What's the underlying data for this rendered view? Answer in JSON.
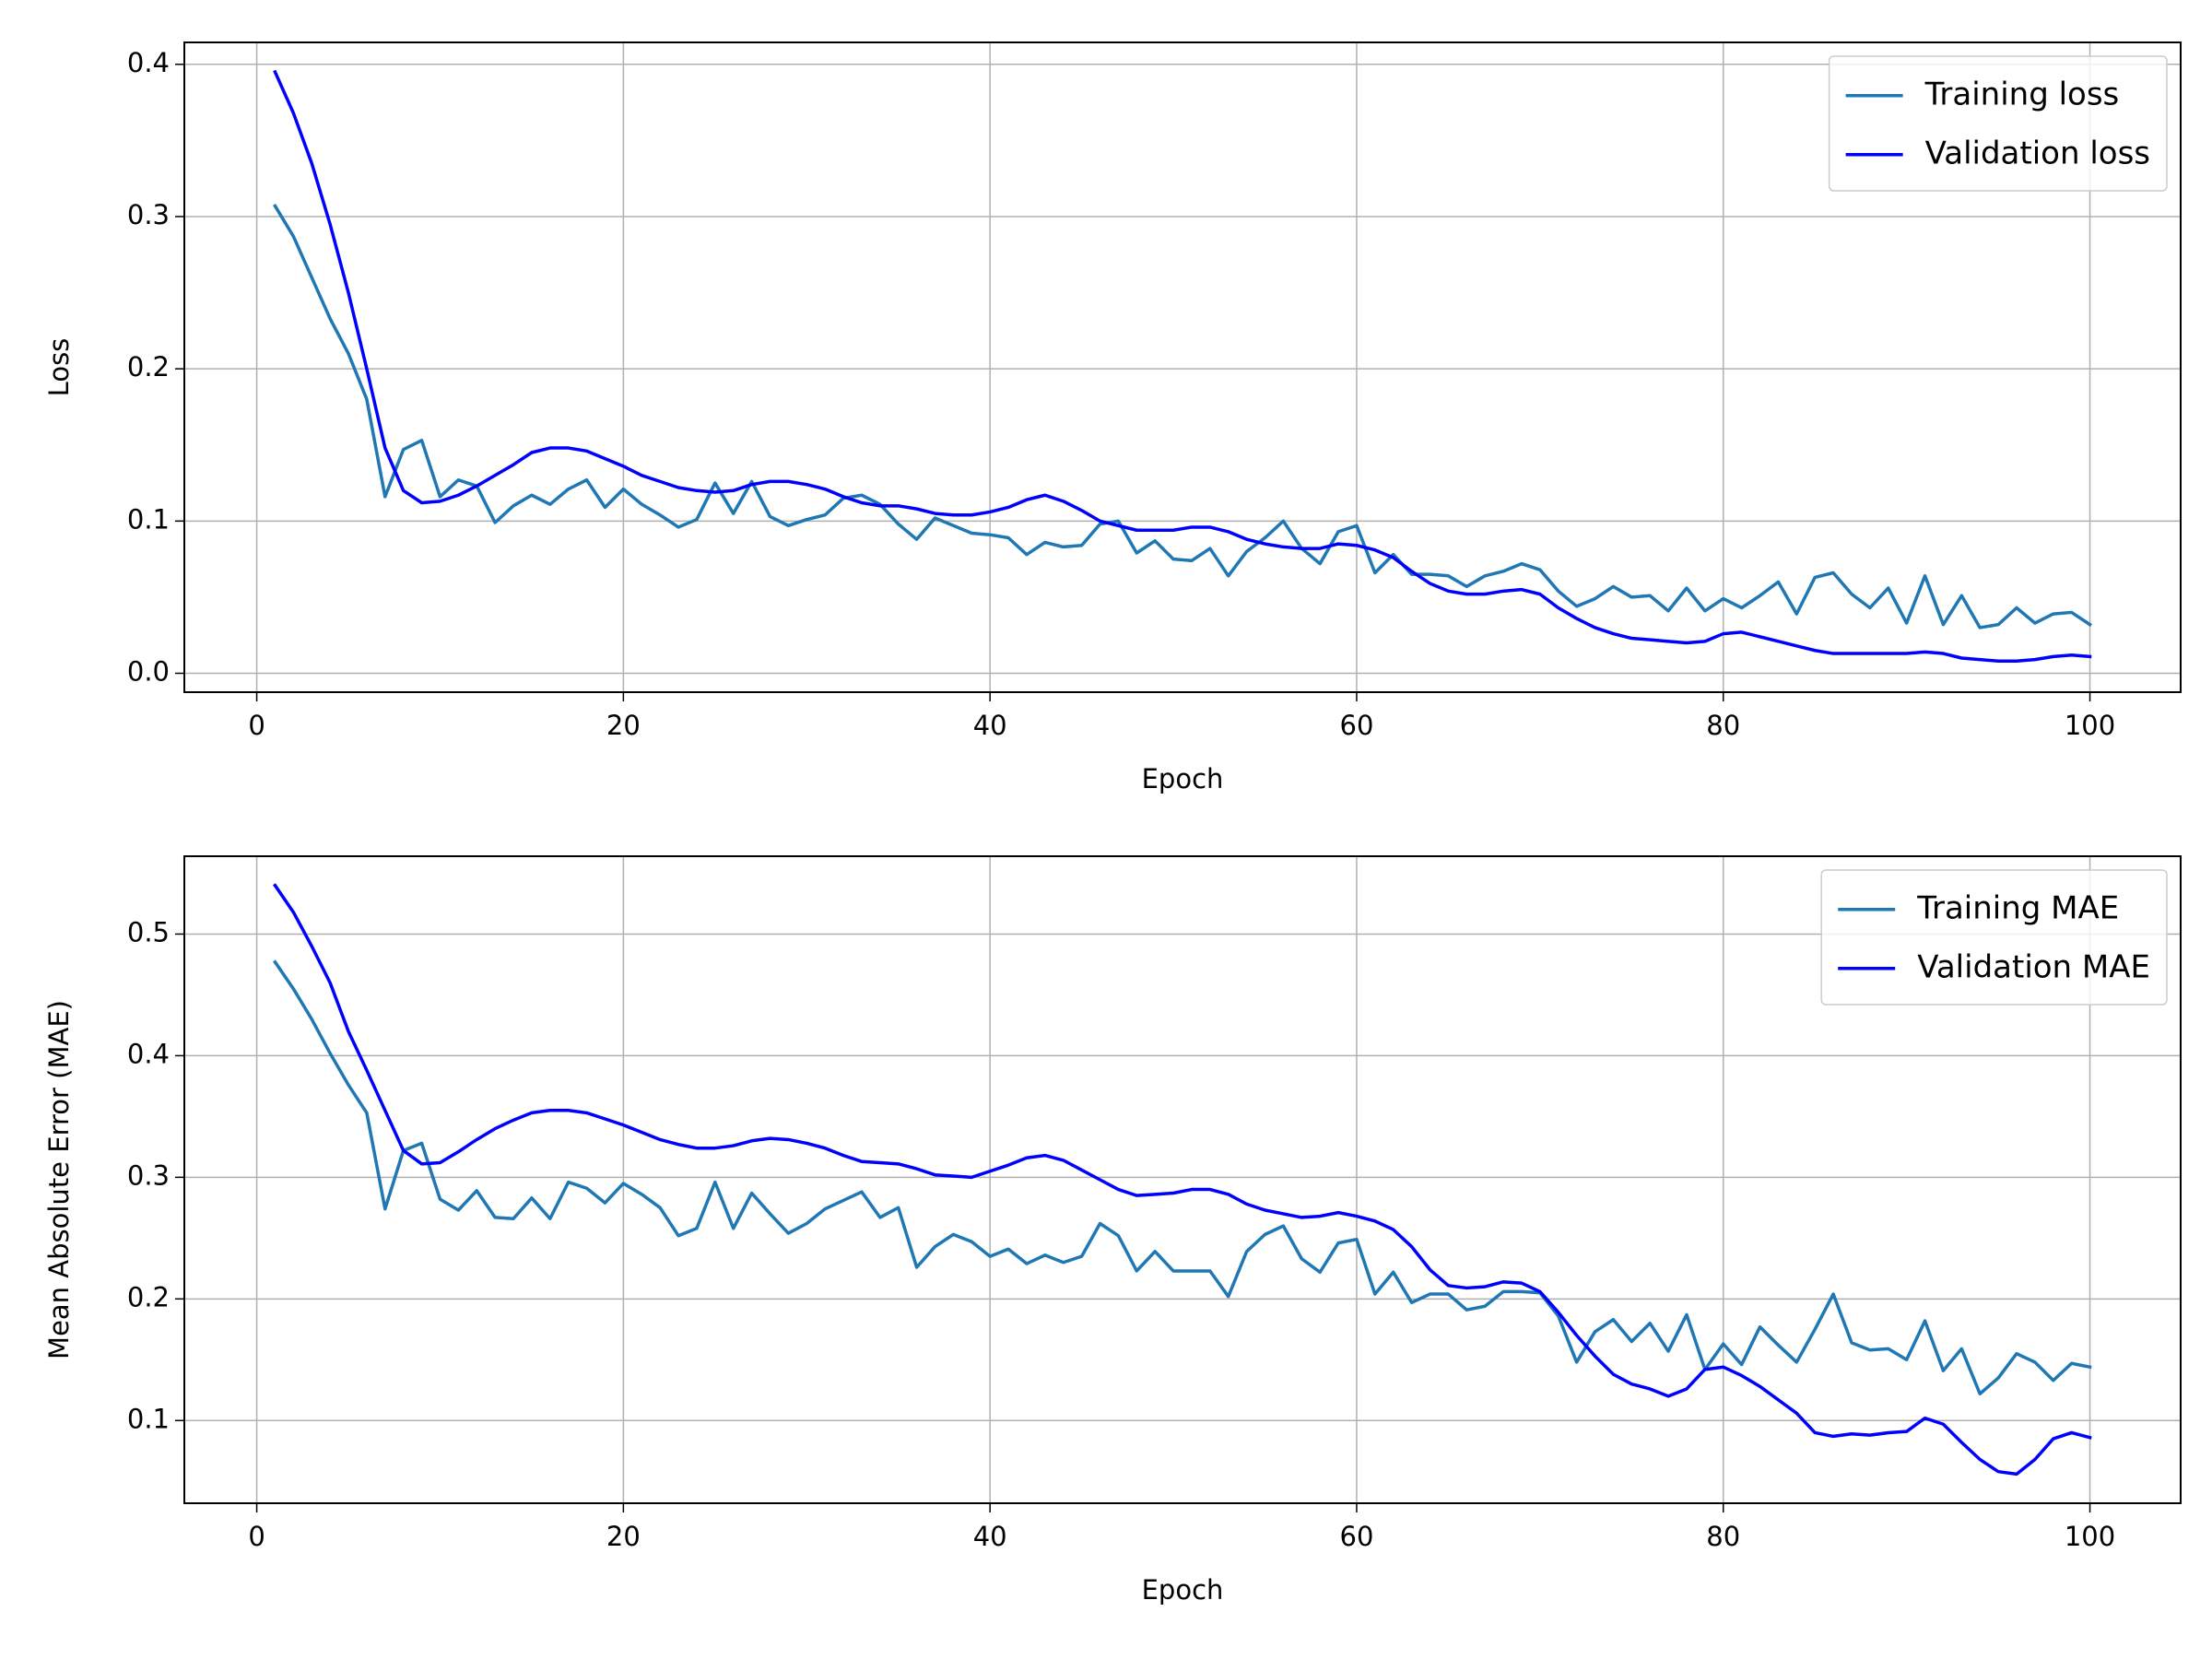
{
  "chart_data": [
    {
      "type": "line",
      "x": [
        1,
        2,
        3,
        4,
        5,
        6,
        7,
        8,
        9,
        10,
        11,
        12,
        13,
        14,
        15,
        16,
        17,
        18,
        19,
        20,
        21,
        22,
        23,
        24,
        25,
        26,
        27,
        28,
        29,
        30,
        31,
        32,
        33,
        34,
        35,
        36,
        37,
        38,
        39,
        40,
        41,
        42,
        43,
        44,
        45,
        46,
        47,
        48,
        49,
        50,
        51,
        52,
        53,
        54,
        55,
        56,
        57,
        58,
        59,
        60,
        61,
        62,
        63,
        64,
        65,
        66,
        67,
        68,
        69,
        70,
        71,
        72,
        73,
        74,
        75,
        76,
        77,
        78,
        79,
        80,
        81,
        82,
        83,
        84,
        85,
        86,
        87,
        88,
        89,
        90,
        91,
        92,
        93,
        94,
        95,
        96,
        97,
        98,
        99,
        100
      ],
      "series": [
        {
          "name": "Training loss",
          "color": "#1f77b4",
          "values": [
            0.307,
            0.287,
            0.26,
            0.233,
            0.21,
            0.18,
            0.116,
            0.147,
            0.153,
            0.116,
            0.127,
            0.123,
            0.099,
            0.11,
            0.117,
            0.111,
            0.121,
            0.127,
            0.109,
            0.121,
            0.111,
            0.104,
            0.096,
            0.101,
            0.125,
            0.105,
            0.126,
            0.103,
            0.097,
            0.101,
            0.104,
            0.115,
            0.117,
            0.111,
            0.098,
            0.088,
            0.102,
            0.097,
            0.092,
            0.091,
            0.089,
            0.078,
            0.086,
            0.083,
            0.084,
            0.098,
            0.1,
            0.079,
            0.087,
            0.075,
            0.074,
            0.082,
            0.064,
            0.08,
            0.089,
            0.1,
            0.082,
            0.072,
            0.093,
            0.097,
            0.066,
            0.078,
            0.065,
            0.065,
            0.064,
            0.057,
            0.064,
            0.067,
            0.072,
            0.068,
            0.054,
            0.044,
            0.049,
            0.057,
            0.05,
            0.051,
            0.041,
            0.056,
            0.041,
            0.049,
            0.043,
            0.051,
            0.06,
            0.039,
            0.063,
            0.066,
            0.052,
            0.043,
            0.056,
            0.033,
            0.064,
            0.032,
            0.051,
            0.03,
            0.032,
            0.043,
            0.033,
            0.039,
            0.04,
            0.032
          ]
        },
        {
          "name": "Validation loss",
          "color": "#0000ff",
          "values": [
            0.395,
            0.368,
            0.335,
            0.295,
            0.25,
            0.2,
            0.148,
            0.12,
            0.112,
            0.113,
            0.117,
            0.123,
            0.13,
            0.137,
            0.145,
            0.148,
            0.148,
            0.146,
            0.141,
            0.136,
            0.13,
            0.126,
            0.122,
            0.12,
            0.119,
            0.12,
            0.124,
            0.126,
            0.126,
            0.124,
            0.121,
            0.116,
            0.112,
            0.11,
            0.11,
            0.108,
            0.105,
            0.104,
            0.104,
            0.106,
            0.109,
            0.114,
            0.117,
            0.113,
            0.107,
            0.1,
            0.097,
            0.094,
            0.094,
            0.094,
            0.096,
            0.096,
            0.093,
            0.088,
            0.085,
            0.083,
            0.082,
            0.082,
            0.085,
            0.084,
            0.081,
            0.076,
            0.067,
            0.059,
            0.054,
            0.052,
            0.052,
            0.054,
            0.055,
            0.052,
            0.043,
            0.036,
            0.03,
            0.026,
            0.023,
            0.022,
            0.021,
            0.02,
            0.021,
            0.026,
            0.027,
            0.024,
            0.021,
            0.018,
            0.015,
            0.013,
            0.013,
            0.013,
            0.013,
            0.013,
            0.014,
            0.013,
            0.01,
            0.009,
            0.008,
            0.008,
            0.009,
            0.011,
            0.012,
            0.011
          ]
        }
      ],
      "xlabel": "Epoch",
      "ylabel": "Loss",
      "xlim": [
        -3.95,
        104.95
      ],
      "ylim": [
        -0.0124,
        0.4144
      ],
      "xticks": [
        0,
        20,
        40,
        60,
        80,
        100
      ],
      "yticks": [
        {
          "value": 0,
          "label": "0.0"
        },
        0.1,
        0.2,
        0.3,
        0.4
      ],
      "grid": true,
      "legend": "upper right"
    },
    {
      "type": "line",
      "x": [
        1,
        2,
        3,
        4,
        5,
        6,
        7,
        8,
        9,
        10,
        11,
        12,
        13,
        14,
        15,
        16,
        17,
        18,
        19,
        20,
        21,
        22,
        23,
        24,
        25,
        26,
        27,
        28,
        29,
        30,
        31,
        32,
        33,
        34,
        35,
        36,
        37,
        38,
        39,
        40,
        41,
        42,
        43,
        44,
        45,
        46,
        47,
        48,
        49,
        50,
        51,
        52,
        53,
        54,
        55,
        56,
        57,
        58,
        59,
        60,
        61,
        62,
        63,
        64,
        65,
        66,
        67,
        68,
        69,
        70,
        71,
        72,
        73,
        74,
        75,
        76,
        77,
        78,
        79,
        80,
        81,
        82,
        83,
        84,
        85,
        86,
        87,
        88,
        89,
        90,
        91,
        92,
        93,
        94,
        95,
        96,
        97,
        98,
        99,
        100
      ],
      "series": [
        {
          "name": "Training MAE",
          "color": "#1f77b4",
          "values": [
            0.477,
            0.455,
            0.43,
            0.402,
            0.376,
            0.353,
            0.274,
            0.322,
            0.328,
            0.282,
            0.273,
            0.289,
            0.267,
            0.266,
            0.283,
            0.266,
            0.296,
            0.291,
            0.279,
            0.295,
            0.286,
            0.275,
            0.252,
            0.258,
            0.296,
            0.258,
            0.287,
            0.27,
            0.254,
            0.262,
            0.274,
            0.281,
            0.288,
            0.267,
            0.275,
            0.226,
            0.243,
            0.253,
            0.247,
            0.235,
            0.241,
            0.229,
            0.236,
            0.23,
            0.235,
            0.262,
            0.252,
            0.223,
            0.239,
            0.223,
            0.223,
            0.223,
            0.202,
            0.239,
            0.253,
            0.26,
            0.233,
            0.222,
            0.246,
            0.249,
            0.204,
            0.222,
            0.197,
            0.204,
            0.204,
            0.191,
            0.194,
            0.206,
            0.206,
            0.205,
            0.186,
            0.148,
            0.173,
            0.183,
            0.165,
            0.18,
            0.157,
            0.187,
            0.142,
            0.163,
            0.146,
            0.177,
            0.162,
            0.148,
            0.175,
            0.204,
            0.164,
            0.158,
            0.159,
            0.15,
            0.182,
            0.141,
            0.159,
            0.122,
            0.135,
            0.155,
            0.148,
            0.133,
            0.147,
            0.144
          ]
        },
        {
          "name": "Validation MAE",
          "color": "#0000ff",
          "values": [
            0.54,
            0.518,
            0.49,
            0.46,
            0.42,
            0.388,
            0.355,
            0.322,
            0.311,
            0.312,
            0.321,
            0.331,
            0.34,
            0.347,
            0.353,
            0.355,
            0.355,
            0.353,
            0.348,
            0.343,
            0.337,
            0.331,
            0.327,
            0.324,
            0.324,
            0.326,
            0.33,
            0.332,
            0.331,
            0.328,
            0.324,
            0.318,
            0.313,
            0.312,
            0.311,
            0.307,
            0.302,
            0.301,
            0.3,
            0.305,
            0.31,
            0.316,
            0.318,
            0.314,
            0.306,
            0.298,
            0.29,
            0.285,
            0.286,
            0.287,
            0.29,
            0.29,
            0.286,
            0.278,
            0.273,
            0.27,
            0.267,
            0.268,
            0.271,
            0.268,
            0.264,
            0.257,
            0.243,
            0.224,
            0.211,
            0.209,
            0.21,
            0.214,
            0.213,
            0.206,
            0.189,
            0.17,
            0.153,
            0.138,
            0.13,
            0.126,
            0.12,
            0.126,
            0.142,
            0.144,
            0.137,
            0.128,
            0.117,
            0.106,
            0.09,
            0.087,
            0.089,
            0.088,
            0.09,
            0.091,
            0.102,
            0.097,
            0.082,
            0.068,
            0.058,
            0.056,
            0.068,
            0.085,
            0.09,
            0.086
          ]
        }
      ],
      "xlabel": "Epoch",
      "ylabel": "Mean Absolute Error (MAE)",
      "xlim": [
        -3.95,
        104.95
      ],
      "ylim": [
        0.032,
        0.564
      ],
      "xticks": [
        0,
        20,
        40,
        60,
        80,
        100
      ],
      "yticks": [
        0.1,
        0.2,
        0.3,
        0.4,
        0.5
      ],
      "grid": true,
      "legend": "upper right"
    }
  ]
}
